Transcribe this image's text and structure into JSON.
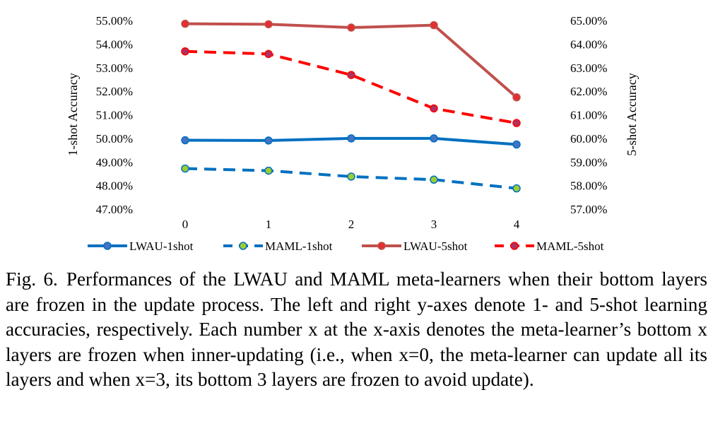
{
  "chart_data": {
    "type": "line",
    "x": [
      0,
      1,
      2,
      3,
      4
    ],
    "x_tick_labels": [
      "0",
      "1",
      "2",
      "3",
      "4"
    ],
    "left_axis": {
      "label": "1-shot Accuracy",
      "range": [
        47,
        55
      ],
      "tick_labels": [
        "47.00%",
        "48.00%",
        "49.00%",
        "50.00%",
        "51.00%",
        "52.00%",
        "53.00%",
        "54.00%",
        "55.00%"
      ]
    },
    "right_axis": {
      "label": "5-shot Accuracy",
      "range": [
        57,
        65
      ],
      "tick_labels": [
        "57.00%",
        "58.00%",
        "59.00%",
        "60.00%",
        "61.00%",
        "62.00%",
        "63.00%",
        "64.00%",
        "65.00%"
      ]
    },
    "series": [
      {
        "name": "LWAU-1shot",
        "axis": "left",
        "values": [
          49.92,
          49.91,
          50.0,
          50.0,
          49.74
        ],
        "color": "#0070c0",
        "marker_fill": "#4472c4",
        "dash": false
      },
      {
        "name": "MAML-1shot",
        "axis": "left",
        "values": [
          48.72,
          48.63,
          48.38,
          48.25,
          47.88
        ],
        "color": "#0070c0",
        "marker_fill": "#9acd32",
        "dash": true
      },
      {
        "name": "LWAU-5shot",
        "axis": "right",
        "values": [
          64.86,
          64.84,
          64.7,
          64.8,
          61.74
        ],
        "color": "#c0504d",
        "marker_fill": "#e03030",
        "dash": false
      },
      {
        "name": "MAML-5shot",
        "axis": "right",
        "values": [
          63.69,
          63.58,
          62.69,
          61.27,
          60.65
        ],
        "color": "#ff0000",
        "marker_fill": "#b03060",
        "dash": true
      }
    ],
    "legend_position": "bottom",
    "grid": false
  },
  "caption": {
    "fig_label": "Fig. 6.",
    "text": "Performances of the LWAU and MAML meta-learners when their bottom layers are frozen in the update process. The left and right y-axes denote 1- and 5-shot learning accuracies, respectively. Each number x at the x-axis denotes the meta-learner’s bottom x layers are frozen when inner-updating (i.e., when x=0, the meta-learner can update all its layers and when x=3, its bottom 3 layers are frozen to avoid update)."
  }
}
